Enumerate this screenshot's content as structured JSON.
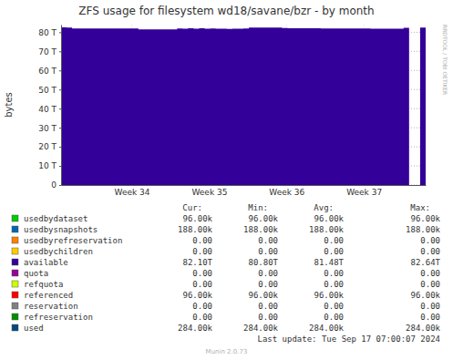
{
  "chart_data": {
    "type": "area",
    "title": "ZFS usage for filesystem wd18/savane/bzr - by month",
    "y_label": "bytes",
    "watermark": "RRDTOOL / TOBI OETIKER",
    "grid": true,
    "x": [
      0,
      0.5,
      1,
      1.5,
      2,
      2.5,
      3,
      3.5,
      4,
      4.5,
      5,
      5.5,
      6,
      6.5,
      7,
      7.5,
      8,
      8.5,
      9,
      9.5,
      10,
      10.5,
      11,
      11.5,
      12,
      12.5,
      13,
      13.5,
      14,
      14.5,
      15,
      15.5,
      16,
      16.5,
      17,
      17.5,
      18,
      18.5,
      19,
      19.5,
      20,
      20.5,
      21,
      21.5,
      22,
      22.5,
      23,
      23.5,
      24,
      24.5,
      25,
      25.5,
      26,
      26.5,
      27,
      27.5,
      28,
      28.5,
      29,
      29.5,
      30,
      30.5,
      31,
      31.5,
      32,
      32.5,
      33
    ],
    "xlim": [
      0,
      33
    ],
    "xticks": [
      {
        "value": 6.4,
        "label": "Week 34"
      },
      {
        "value": 13.4,
        "label": "Week 35"
      },
      {
        "value": 20.4,
        "label": "Week 36"
      },
      {
        "value": 27.4,
        "label": "Week 37"
      }
    ],
    "ylim": [
      0,
      84
    ],
    "yticks": [
      0,
      {
        "value": 10,
        "label": "10 T"
      },
      {
        "value": 20,
        "label": "20 T"
      },
      {
        "value": 30,
        "label": "30 T"
      },
      {
        "value": 40,
        "label": "40 T"
      },
      {
        "value": 50,
        "label": "50 T"
      },
      {
        "value": 60,
        "label": "60 T"
      },
      {
        "value": 70,
        "label": "70 T"
      },
      {
        "value": 80,
        "label": "80 T"
      }
    ],
    "legend_columns": [
      "Cur:",
      "Min:",
      "Avg:",
      "Max:"
    ],
    "series": [
      {
        "name": "usedbydataset",
        "color": "#00cc00",
        "stats": [
          "96.00k",
          "96.00k",
          "96.00k",
          "96.00k"
        ]
      },
      {
        "name": "usedbysnapshots",
        "color": "#0066b3",
        "stats": [
          "188.00k",
          "188.00k",
          "188.00k",
          "188.00k"
        ]
      },
      {
        "name": "usedbyrefreservation",
        "color": "#ff8000",
        "stats": [
          "0.00",
          "0.00",
          "0.00",
          "0.00"
        ]
      },
      {
        "name": "usedbychildren",
        "color": "#ffcc00",
        "stats": [
          "0.00",
          "0.00",
          "0.00",
          "0.00"
        ]
      },
      {
        "name": "available",
        "color": "#330099",
        "stats": [
          "82.10T",
          "80.80T",
          "81.48T",
          "82.64T"
        ],
        "values": [
          82.6,
          82.5,
          82.0,
          82.0,
          82.0,
          82.0,
          82.0,
          82.0,
          82.0,
          82.0,
          82.0,
          82.0,
          82.0,
          82.0,
          81.5,
          81.5,
          81.5,
          81.5,
          81.5,
          81.5,
          81.5,
          82.0,
          81.8,
          82.1,
          81.9,
          82.1,
          81.8,
          82.0,
          81.8,
          81.9,
          81.7,
          81.8,
          81.8,
          82.0,
          82.4,
          82.4,
          82.4,
          82.4,
          82.4,
          82.4,
          82.2,
          82.1,
          82.1,
          82.1,
          82.1,
          82.1,
          82.1,
          82.0,
          82.0,
          82.0,
          82.0,
          82.0,
          82.0,
          82.0,
          82.0,
          82.0,
          81.9,
          81.9,
          81.9,
          81.9,
          81.9,
          81.9,
          82.3,
          82.4,
          null,
          82.4,
          82.5
        ]
      },
      {
        "name": "quota",
        "color": "#990099",
        "stats": [
          "0.00",
          "0.00",
          "0.00",
          "0.00"
        ]
      },
      {
        "name": "refquota",
        "color": "#ccff00",
        "stats": [
          "0.00",
          "0.00",
          "0.00",
          "0.00"
        ]
      },
      {
        "name": "referenced",
        "color": "#ff0000",
        "stats": [
          "96.00k",
          "96.00k",
          "96.00k",
          "96.00k"
        ]
      },
      {
        "name": "reservation",
        "color": "#808080",
        "stats": [
          "0.00",
          "0.00",
          "0.00",
          "0.00"
        ]
      },
      {
        "name": "refreservation",
        "color": "#008f00",
        "stats": [
          "0.00",
          "0.00",
          "0.00",
          "0.00"
        ]
      },
      {
        "name": "used",
        "color": "#00487d",
        "stats": [
          "284.00k",
          "284.00k",
          "284.00k",
          "284.00k"
        ]
      }
    ],
    "last_update": "Last update: Tue Sep 17 07:00:07 2024",
    "version_note": "Munin 2.0.73"
  }
}
